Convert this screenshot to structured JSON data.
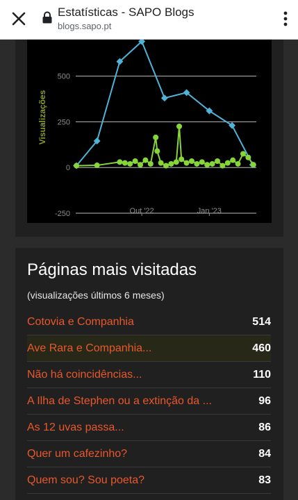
{
  "browser": {
    "title": "Estatísticas - SAPO Blogs",
    "url": "blogs.sapo.pt"
  },
  "icons": {
    "close": "close-icon",
    "lock": "lock-icon",
    "menu": "more-vert-icon"
  },
  "colors": {
    "line_blue": "#4fb3d9",
    "line_green": "#86d63a",
    "link": "#e8582c",
    "ylabel": "#8a9a2a"
  },
  "chart_data": {
    "type": "line",
    "ylabel": "Visualizações",
    "ylim": [
      -250,
      700
    ],
    "yticks": [
      -250,
      0,
      250,
      500
    ],
    "xticks": [
      "Out '22",
      "Jan '23"
    ],
    "xlim": [
      "2022-07-03",
      "2023-03-06"
    ],
    "grid": true,
    "series": [
      {
        "x": [
          "2022-07-04",
          "2022-08-01",
          "2022-09-01",
          "2022-10-01",
          "2022-11-01",
          "2022-12-01",
          "2023-01-01",
          "2023-02-01",
          "2023-03-01"
        ],
        "y": [
          10,
          145,
          580,
          690,
          380,
          410,
          310,
          230,
          15
        ]
      },
      {
        "x": [
          "2022-07-04",
          "2022-08-01",
          "2022-09-01",
          "2022-09-08",
          "2022-09-15",
          "2022-09-22",
          "2022-09-29",
          "2022-10-06",
          "2022-10-13",
          "2022-10-20",
          "2022-10-22",
          "2022-10-27",
          "2022-11-03",
          "2022-11-10",
          "2022-11-17",
          "2022-11-21",
          "2022-11-24",
          "2022-12-01",
          "2022-12-08",
          "2022-12-15",
          "2022-12-22",
          "2022-12-29",
          "2023-01-05",
          "2023-01-12",
          "2023-01-19",
          "2023-01-26",
          "2023-02-02",
          "2023-02-09",
          "2023-02-16",
          "2023-02-23",
          "2023-03-02"
        ],
        "y": [
          10,
          12,
          30,
          25,
          20,
          35,
          15,
          40,
          20,
          165,
          90,
          25,
          10,
          20,
          30,
          225,
          45,
          25,
          35,
          20,
          30,
          15,
          20,
          35,
          10,
          25,
          40,
          20,
          75,
          55,
          15
        ]
      }
    ]
  },
  "pages": {
    "title": "Páginas mais visitadas",
    "subtitle": "(visualizações últimos 6 meses)",
    "items": [
      {
        "label": "Cotovia e Companhia",
        "count": "514"
      },
      {
        "label": "Ave Rara e Companhia...",
        "count": "460"
      },
      {
        "label": "Não há coincidências...",
        "count": "110"
      },
      {
        "label": "A Ilha de Stephen ou a extinção da ...",
        "count": "96"
      },
      {
        "label": "As 12 uvas passa...",
        "count": "86"
      },
      {
        "label": "Quer um cafezinho?",
        "count": "84"
      },
      {
        "label": "Quem sou? Sou poeta?",
        "count": "83"
      }
    ]
  }
}
